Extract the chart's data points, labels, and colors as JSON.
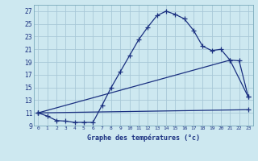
{
  "title": "Graphe des températures (°c)",
  "bg_color": "#cde8f0",
  "line_color": "#1a3080",
  "grid_color": "#a8c8d8",
  "xlim": [
    -0.5,
    23.5
  ],
  "ylim": [
    9,
    28
  ],
  "xticks": [
    0,
    1,
    2,
    3,
    4,
    5,
    6,
    7,
    8,
    9,
    10,
    11,
    12,
    13,
    14,
    15,
    16,
    17,
    18,
    19,
    20,
    21,
    22,
    23
  ],
  "yticks": [
    9,
    11,
    13,
    15,
    17,
    19,
    21,
    23,
    25,
    27
  ],
  "curve1_x": [
    0,
    1,
    2,
    3,
    4,
    5,
    6,
    7,
    8,
    9,
    10,
    11,
    12,
    13,
    14,
    15,
    16,
    17,
    18,
    19,
    20,
    21,
    22,
    23
  ],
  "curve1_y": [
    11.0,
    10.5,
    9.8,
    9.7,
    9.5,
    9.5,
    9.5,
    12.2,
    15.0,
    17.5,
    20.0,
    22.5,
    24.5,
    26.3,
    27.0,
    26.5,
    25.8,
    24.0,
    21.5,
    20.8,
    21.0,
    19.3,
    19.2,
    13.5
  ],
  "curve2_x": [
    0,
    23
  ],
  "curve2_y": [
    11.0,
    11.5
  ],
  "curve3_x": [
    0,
    21,
    23
  ],
  "curve3_y": [
    11.0,
    19.3,
    13.5
  ],
  "figsize": [
    3.2,
    2.0
  ],
  "dpi": 100
}
